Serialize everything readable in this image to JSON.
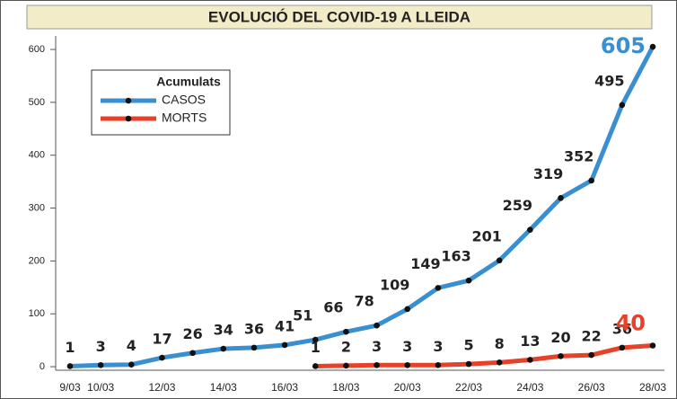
{
  "chart_data": {
    "type": "line",
    "title": "EVOLUCIÓ DEL COVID-19 A LLEIDA",
    "legend_title": "Acumulats",
    "legend": "upper left",
    "categories": [
      "9/03",
      "10/03",
      null,
      "12/03",
      null,
      "14/03",
      null,
      "16/03",
      null,
      "18/03",
      null,
      "20/03",
      null,
      "22/03",
      null,
      "24/03",
      null,
      "26/03",
      null,
      "28/03"
    ],
    "series": [
      {
        "name": "CASOS",
        "color": "#3a8fd0",
        "values": [
          1,
          3,
          4,
          17,
          26,
          34,
          36,
          41,
          51,
          66,
          78,
          109,
          149,
          163,
          201,
          259,
          319,
          352,
          495,
          605
        ]
      },
      {
        "name": "MORTS",
        "color": "#e8412a",
        "values": [
          null,
          null,
          null,
          null,
          null,
          null,
          null,
          null,
          1,
          2,
          3,
          3,
          3,
          5,
          8,
          13,
          20,
          22,
          36,
          40
        ]
      }
    ],
    "ylim": [
      -4,
      640
    ],
    "yticks": [
      0,
      100,
      200,
      300,
      400,
      500,
      600
    ]
  }
}
